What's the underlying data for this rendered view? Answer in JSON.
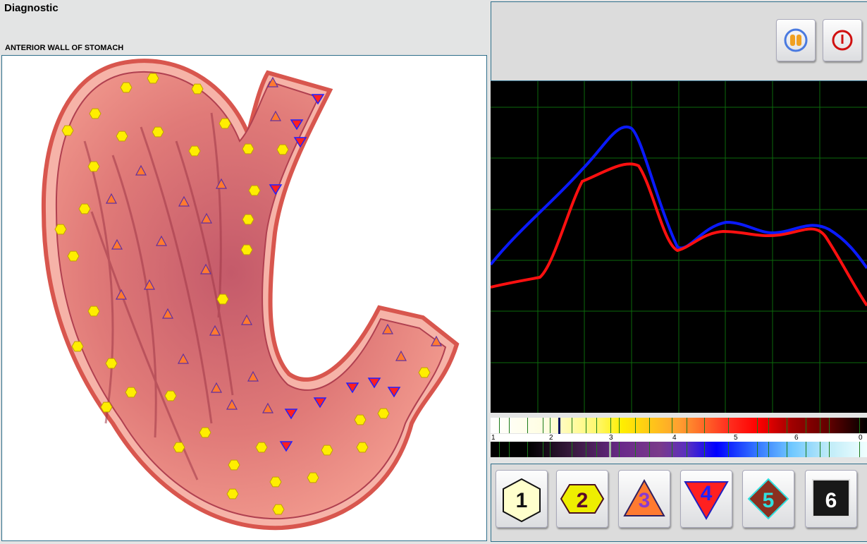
{
  "window": {
    "title": "Diagnostic"
  },
  "organ_label": "ANTERIOR WALL OF STOMACH",
  "top_buttons": [
    {
      "name": "pause",
      "icon": "pause-icon"
    },
    {
      "name": "power",
      "icon": "power-icon"
    }
  ],
  "scale": {
    "labels": [
      "1",
      "2",
      "3",
      "4",
      "5",
      "6",
      "0"
    ]
  },
  "level_buttons": [
    {
      "label": "1",
      "shape": "hexagon",
      "fill": "#ffffcc",
      "text_color": "#111111"
    },
    {
      "label": "2",
      "shape": "hexagon",
      "fill": "#eeee00",
      "text_color": "#5a0a2a"
    },
    {
      "label": "3",
      "shape": "triangle-up",
      "fill": "#ff7a30",
      "text_color": "#8a3ad0"
    },
    {
      "label": "4",
      "shape": "triangle-down",
      "fill": "#ff2020",
      "text_color": "#2020ff"
    },
    {
      "label": "5",
      "shape": "diamond",
      "fill": "#8a3020",
      "text_color": "#30e0e0"
    },
    {
      "label": "6",
      "shape": "square",
      "fill": "#181818",
      "text_color": "#ffffff"
    }
  ],
  "colors": {
    "curve_blue": "#0a1aff",
    "curve_red": "#ff1010",
    "grid": "#0b6a0b"
  }
}
